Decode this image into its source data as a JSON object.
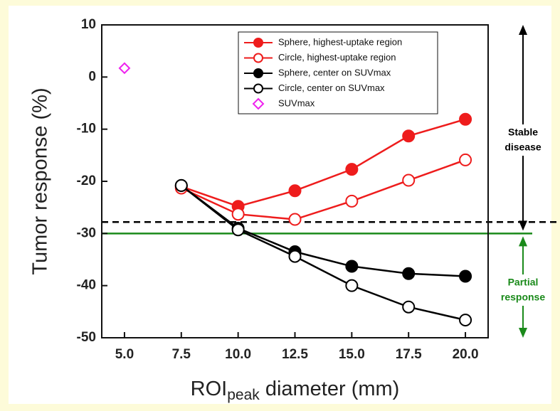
{
  "chart_data": {
    "type": "line",
    "y_label": "Tumor response (%)",
    "x_label_parts": [
      "ROI",
      "peak",
      " diameter (mm)"
    ],
    "x": [
      7.5,
      10,
      12.5,
      15,
      17.5,
      20
    ],
    "series": [
      {
        "name": "Sphere, highest-uptake region",
        "color": "#ee1c1c",
        "marker": "filled",
        "values": [
          -21,
          -24.8,
          -21.8,
          -17.7,
          -11.3,
          -8.1
        ]
      },
      {
        "name": "Circle, highest-uptake region",
        "color": "#ee1c1c",
        "marker": "open",
        "values": [
          -21.3,
          -26.3,
          -27.3,
          -23.8,
          -19.8,
          -15.9
        ]
      },
      {
        "name": "Sphere, center on SUVmax",
        "color": "#000000",
        "marker": "filled",
        "values": [
          -20.8,
          -29,
          -33.5,
          -36.3,
          -37.7,
          -38.2
        ]
      },
      {
        "name": "Circle, center on SUVmax",
        "color": "#000000",
        "marker": "open",
        "values": [
          -20.8,
          -29.3,
          -34.4,
          -40,
          -44.1,
          -46.6
        ]
      },
      {
        "name": "SUVmax",
        "color": "#ee22ee",
        "marker": "diamond",
        "x": [
          5
        ],
        "values": [
          1.7
        ]
      }
    ],
    "xlim": [
      4,
      21
    ],
    "ylim": [
      -50,
      10
    ],
    "xticks": [
      {
        "value": 5,
        "label": "5.0"
      },
      7.5,
      {
        "value": 10,
        "label": "10.0"
      },
      12.5,
      {
        "value": 15,
        "label": "15.0"
      },
      17.5,
      {
        "value": 20,
        "label": "20.0"
      }
    ],
    "yticks": [
      10,
      0,
      -10,
      -20,
      -30,
      -40,
      -50
    ],
    "reference_lines": [
      {
        "value": -27.8,
        "color": "#000000",
        "dashed": true
      },
      {
        "value": -30,
        "color": "#1a8a1a",
        "dashed": false
      }
    ],
    "annotations": [
      {
        "lines": [
          "Stable",
          "disease"
        ],
        "color": "#000000"
      },
      {
        "lines": [
          "Partial",
          "response"
        ],
        "color": "#1a8a1a"
      }
    ],
    "legend": "upper-right"
  }
}
